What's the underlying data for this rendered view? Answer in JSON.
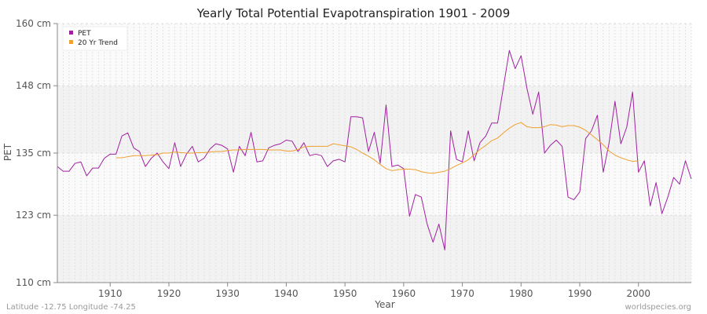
{
  "chart_data": {
    "type": "line",
    "title": "Yearly Total Potential Evapotranspiration 1901 - 2009",
    "xlabel": "Year",
    "ylabel": "PET",
    "xlim": [
      1901,
      2009
    ],
    "ylim": [
      110,
      160
    ],
    "y_ticks": [
      {
        "value": 110,
        "label": "110 cm"
      },
      {
        "value": 123,
        "label": "123 cm"
      },
      {
        "value": 135,
        "label": "135 cm"
      },
      {
        "value": 148,
        "label": "148 cm"
      },
      {
        "value": 160,
        "label": "160 cm"
      }
    ],
    "x_ticks": [
      {
        "value": 1910,
        "label": "1910"
      },
      {
        "value": 1920,
        "label": "1920"
      },
      {
        "value": 1930,
        "label": "1930"
      },
      {
        "value": 1940,
        "label": "1940"
      },
      {
        "value": 1950,
        "label": "1950"
      },
      {
        "value": 1960,
        "label": "1960"
      },
      {
        "value": 1970,
        "label": "1970"
      },
      {
        "value": 1980,
        "label": "1980"
      },
      {
        "value": 1990,
        "label": "1990"
      },
      {
        "value": 2000,
        "label": "2000"
      }
    ],
    "grid": true,
    "legend_position": "top-left",
    "series": [
      {
        "name": "PET",
        "color": "#a020a0",
        "x_start": 1901,
        "values": [
          132.4,
          131.5,
          131.5,
          133.0,
          133.3,
          130.6,
          132.1,
          132.1,
          134.0,
          134.8,
          134.8,
          138.3,
          138.9,
          136.0,
          135.3,
          132.4,
          134.0,
          135.0,
          133.3,
          132.0,
          137.0,
          132.4,
          134.8,
          136.3,
          133.3,
          134.0,
          135.8,
          136.8,
          136.5,
          135.8,
          131.3,
          136.3,
          134.5,
          139.0,
          133.3,
          133.5,
          136.0,
          136.5,
          136.8,
          137.5,
          137.3,
          135.3,
          137.0,
          134.5,
          134.8,
          134.5,
          132.4,
          133.5,
          133.8,
          133.3,
          142.0,
          142.0,
          141.8,
          135.3,
          139.0,
          133.0,
          144.3,
          132.4,
          132.7,
          132.0,
          122.8,
          127.0,
          126.5,
          121.3,
          117.8,
          121.3,
          116.3,
          139.3,
          133.8,
          133.3,
          139.3,
          133.5,
          137.0,
          138.3,
          140.8,
          140.8,
          147.8,
          154.8,
          151.3,
          153.8,
          147.5,
          142.5,
          146.8,
          135.0,
          136.5,
          137.5,
          136.3,
          126.5,
          126.0,
          127.5,
          137.8,
          139.3,
          142.3,
          131.3,
          137.0,
          145.0,
          136.8,
          140.0,
          146.8,
          131.3,
          133.5,
          124.8,
          129.3,
          123.3,
          126.5,
          130.3,
          129.0,
          133.5,
          130.0
        ]
      },
      {
        "name": "20 Yr Trend",
        "color": "#f0a030",
        "x_start": 1911,
        "values": [
          134.1,
          134.1,
          134.3,
          134.5,
          134.5,
          134.5,
          134.6,
          134.7,
          135.0,
          135.0,
          135.2,
          135.1,
          135.0,
          135.0,
          135.1,
          135.1,
          135.2,
          135.3,
          135.3,
          135.5,
          135.6,
          135.6,
          135.7,
          135.7,
          135.7,
          135.7,
          135.6,
          135.6,
          135.6,
          135.4,
          135.4,
          135.7,
          136.2,
          136.3,
          136.3,
          136.3,
          136.3,
          136.8,
          136.6,
          136.4,
          136.2,
          135.7,
          135.0,
          134.4,
          133.7,
          132.8,
          132.0,
          131.6,
          131.8,
          131.9,
          131.9,
          131.8,
          131.4,
          131.2,
          131.1,
          131.3,
          131.5,
          132.0,
          132.6,
          133.1,
          133.7,
          134.7,
          135.7,
          136.5,
          137.4,
          137.9,
          138.9,
          139.8,
          140.5,
          140.9,
          140.1,
          139.9,
          139.9,
          140.1,
          140.5,
          140.4,
          140.1,
          140.3,
          140.3,
          140.0,
          139.4,
          138.5,
          137.6,
          136.6,
          135.4,
          134.6,
          134.1,
          133.7,
          133.4,
          133.5
        ]
      }
    ]
  },
  "footer": {
    "left": "Latitude -12.75 Longitude -74.25",
    "right": "worldspecies.org"
  }
}
